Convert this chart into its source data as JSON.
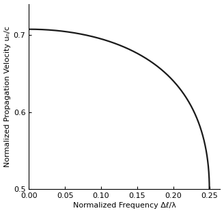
{
  "xlabel": "Normalized Frequency Δℓ/λ",
  "ylabel": "Normalized Propagation Velocity uₙ/c",
  "xlim": [
    0,
    0.265
  ],
  "ylim": [
    0.5,
    0.74
  ],
  "xticks": [
    0,
    0.05,
    0.1,
    0.15,
    0.2,
    0.25
  ],
  "yticks": [
    0.5,
    0.6,
    0.7
  ],
  "line_color": "#1a1a1a",
  "line_width": 1.6,
  "bg_color": "#ffffff",
  "figure_size": [
    3.28,
    3.11
  ],
  "dpi": 100
}
